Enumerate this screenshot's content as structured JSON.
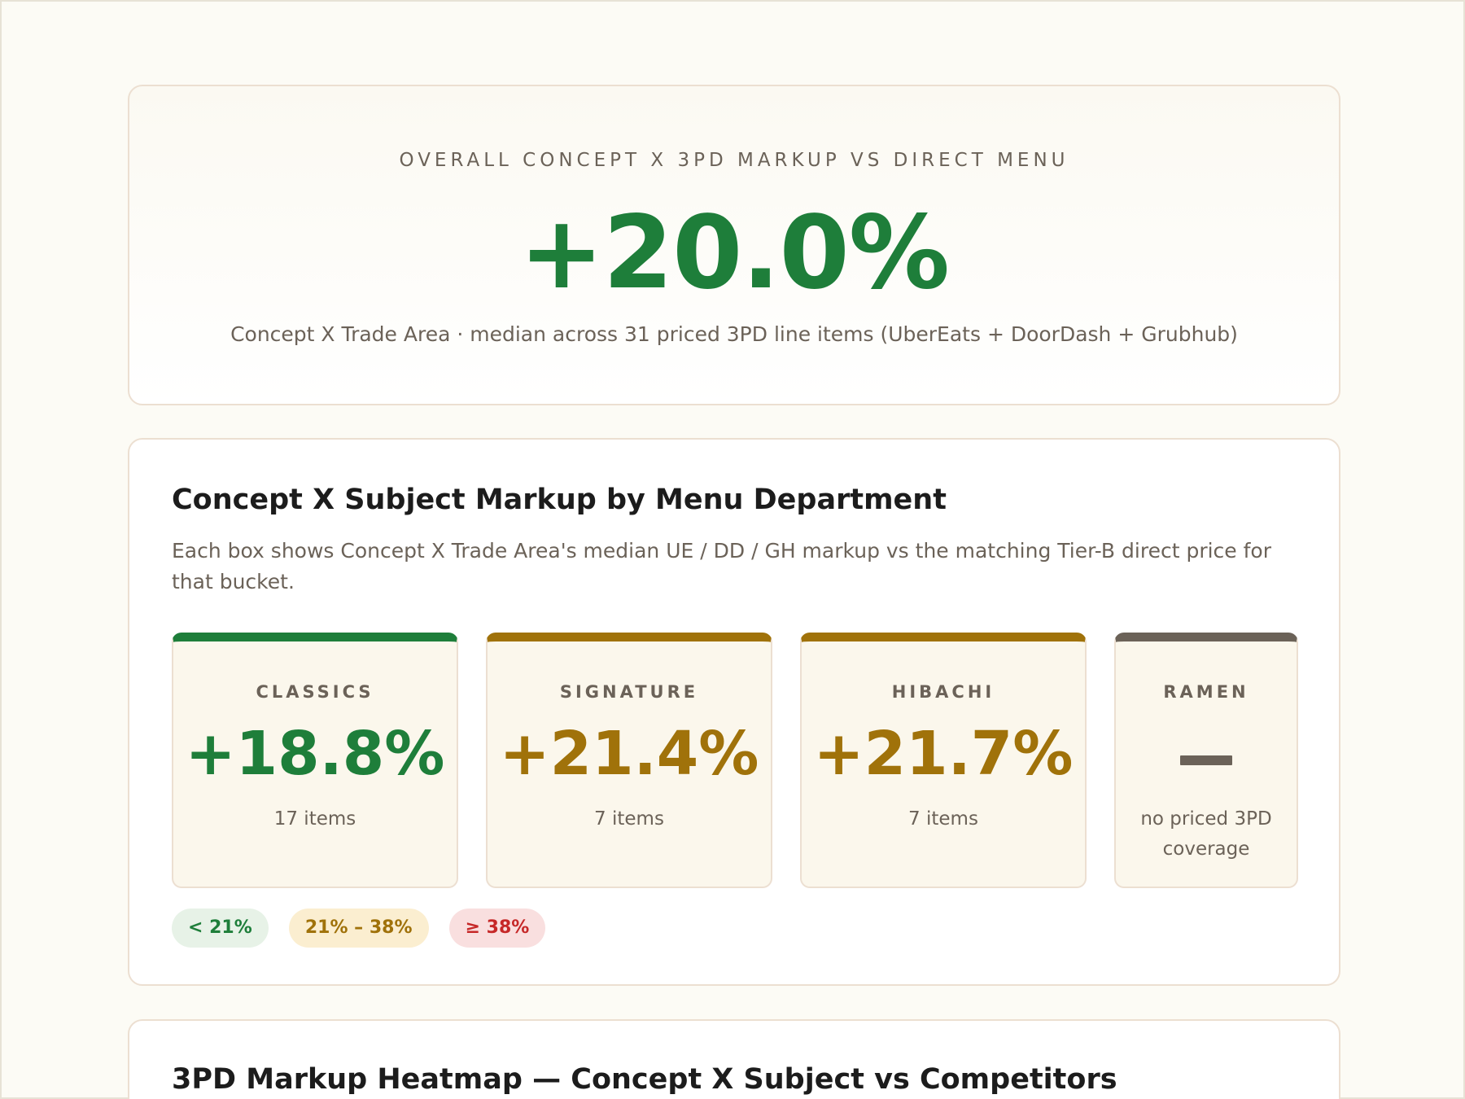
{
  "hero": {
    "label": "OVERALL CONCEPT X 3PD MARKUP VS DIRECT MENU",
    "value": "+20.0%",
    "subtitle": "Concept X Trade Area · median across 31 priced 3PD line items (UberEats + DoorDash + Grubhub)"
  },
  "department": {
    "title": "Concept X Subject Markup by Menu Department",
    "description": "Each box shows Concept X Trade Area's median UE / DD / GH markup vs the matching Tier-B direct price for that bucket.",
    "tiles": [
      {
        "label": "CLASSICS",
        "value": "+18.8%",
        "count": "17 items",
        "accent": "#1e7e3a"
      },
      {
        "label": "SIGNATURE",
        "value": "+21.4%",
        "count": "7 items",
        "accent": "#a0720a"
      },
      {
        "label": "HIBACHI",
        "value": "+21.7%",
        "count": "7 items",
        "accent": "#a0720a"
      },
      {
        "label": "RAMEN",
        "value": "",
        "count": "no priced 3PD coverage",
        "accent": "#6b6258"
      }
    ],
    "legend": [
      {
        "label": "< 21%",
        "color": "#1e7e3a"
      },
      {
        "label": "21% – 38%",
        "color": "#a0720a"
      },
      {
        "label": "≥ 38%",
        "color": "#c62828"
      }
    ]
  },
  "heatmap": {
    "title": "3PD Markup Heatmap — Concept X Subject vs Competitors"
  }
}
